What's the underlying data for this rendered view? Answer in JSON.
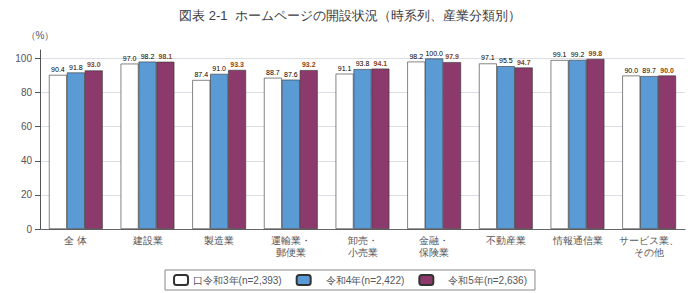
{
  "chart_data": {
    "type": "bar",
    "title": "図表 2-1  ホームページの開設状況（時系列、産業分類別）",
    "ylabel": "（%）",
    "categories": [
      "全 体",
      "建設業",
      "製造業",
      "運輸業・\n郵便業",
      "卸売・\n小売業",
      "金融・\n保険業",
      "不動産業",
      "情報通信業",
      "サービス業、\nその他"
    ],
    "series": [
      {
        "name": "口令和3年(n=2,393)",
        "color": "#ffffff",
        "values": [
          90.4,
          97.0,
          87.4,
          88.7,
          91.1,
          98.2,
          97.1,
          99.1,
          90.0
        ],
        "value_labels": [
          "90.4",
          "97.0",
          "87.4",
          "88.7",
          "91.1",
          "98.2",
          "97.1",
          "99.1",
          "90.0"
        ]
      },
      {
        "name": "　令和4年(n=2,422)",
        "color": "#5b9bd5",
        "values": [
          91.8,
          98.2,
          91.0,
          87.6,
          93.8,
          100.0,
          95.5,
          99.2,
          89.7
        ],
        "value_labels": [
          "91.8",
          "98.2",
          "91.0",
          "87.6",
          "93.8",
          "100.0",
          "95.5",
          "99.2",
          "89.7"
        ]
      },
      {
        "name": "　令和5年(n=2,636)",
        "color": "#8b3a6b",
        "values": [
          93.0,
          98.1,
          93.3,
          93.2,
          94.1,
          97.9,
          94.7,
          99.8,
          90.0
        ],
        "value_labels": [
          "93.0",
          "98.1",
          "93.3",
          "93.2",
          "94.1",
          "97.9",
          "94.7",
          "99.8",
          "90.0"
        ]
      }
    ],
    "ylim": [
      0,
      105
    ],
    "yticks": [
      0,
      20,
      40,
      60,
      80,
      100
    ],
    "grid": true,
    "legend": "bottom",
    "data_labels": true
  }
}
